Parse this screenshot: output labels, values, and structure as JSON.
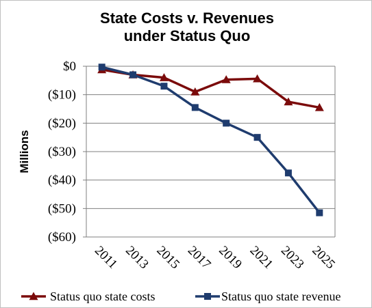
{
  "chart_data": {
    "type": "line",
    "title_lines": [
      "State Costs v. Revenues",
      "under Status Quo"
    ],
    "ylabel": "Millions",
    "xlabel": "",
    "categories": [
      "2011",
      "2013",
      "2015",
      "2017",
      "2019",
      "2021",
      "2023",
      "2025"
    ],
    "y_ticks": [
      0,
      -10,
      -20,
      -30,
      -40,
      -50,
      -60
    ],
    "y_tick_labels": [
      "$0",
      "($10)",
      "($20)",
      "($30)",
      "($40)",
      "($50)",
      "($60)"
    ],
    "ylim": [
      -60,
      0
    ],
    "grid": true,
    "legend_position": "bottom",
    "series": [
      {
        "name": "Status quo state costs",
        "marker": "triangle",
        "color": "#7b0b0b",
        "values": [
          -1.2,
          -3.0,
          -4.0,
          -9.0,
          -4.7,
          -4.4,
          -12.5,
          -14.5
        ]
      },
      {
        "name": "Status quo state revenue",
        "marker": "square",
        "color": "#1f3c6e",
        "values": [
          -0.3,
          -3.0,
          -7.0,
          -14.5,
          -20.0,
          -25.0,
          -37.5,
          -51.5
        ]
      }
    ]
  }
}
